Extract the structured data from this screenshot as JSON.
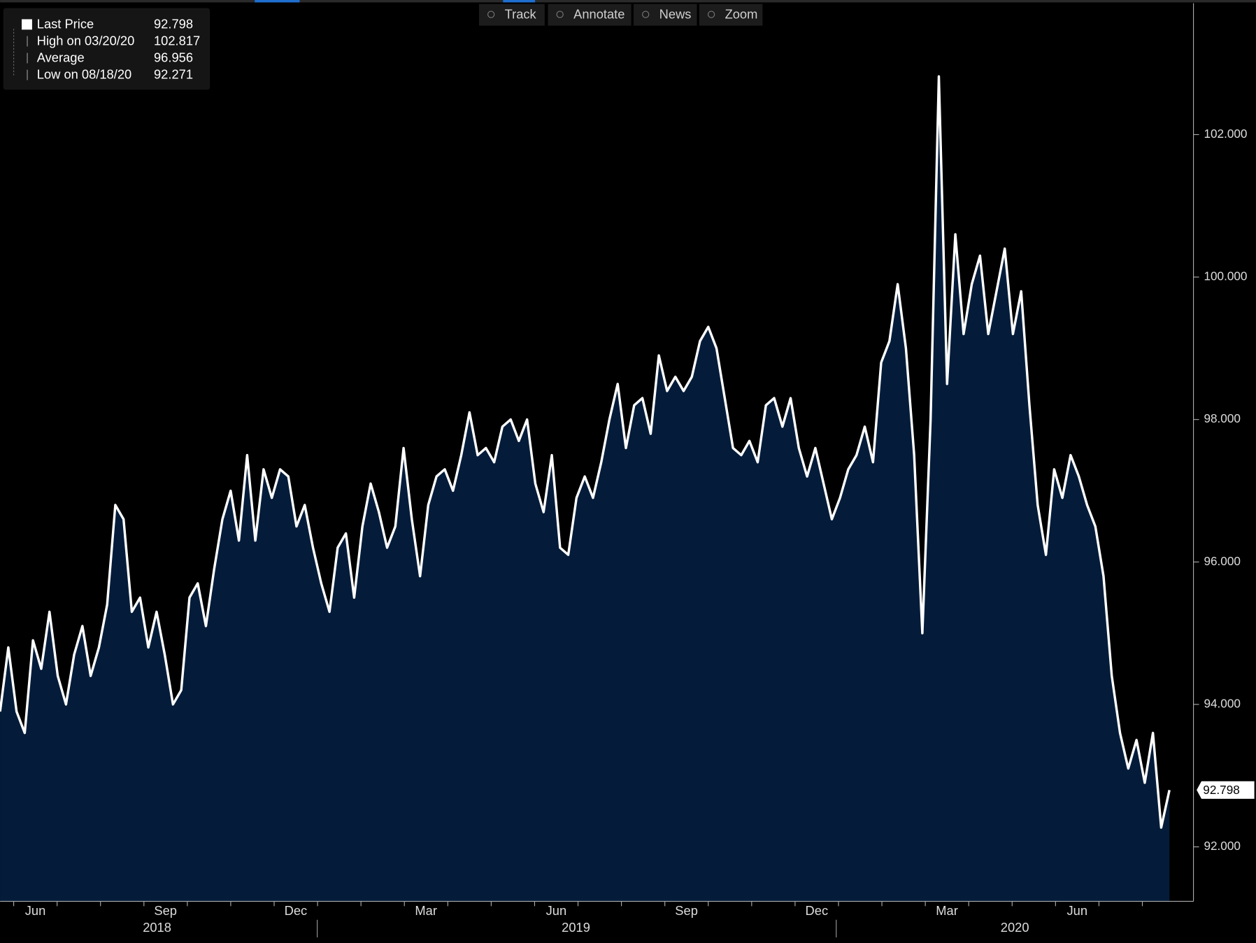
{
  "toolbar": [
    "Track",
    "Annotate",
    "News",
    "Zoom"
  ],
  "chart_data": {
    "type": "area-line",
    "series": [
      {
        "name": "Last Price",
        "color": "#ffffff",
        "fill": "#041c3a",
        "values": [
          93.9,
          94.8,
          93.9,
          93.6,
          94.9,
          94.5,
          95.3,
          94.4,
          94.0,
          94.7,
          95.1,
          94.4,
          94.8,
          95.4,
          96.8,
          96.6,
          95.3,
          95.5,
          94.8,
          95.3,
          94.7,
          94.0,
          94.2,
          95.5,
          95.7,
          95.1,
          95.9,
          96.6,
          97.0,
          96.3,
          97.5,
          96.3,
          97.3,
          96.9,
          97.3,
          97.2,
          96.5,
          96.8,
          96.2,
          95.7,
          95.3,
          96.2,
          96.4,
          95.5,
          96.5,
          97.1,
          96.7,
          96.2,
          96.5,
          97.6,
          96.6,
          95.8,
          96.8,
          97.2,
          97.3,
          97.0,
          97.5,
          98.1,
          97.5,
          97.6,
          97.4,
          97.9,
          98.0,
          97.7,
          98.0,
          97.1,
          96.7,
          97.5,
          96.2,
          96.1,
          96.9,
          97.2,
          96.9,
          97.4,
          98.0,
          98.5,
          97.6,
          98.2,
          98.3,
          97.8,
          98.9,
          98.4,
          98.6,
          98.4,
          98.6,
          99.1,
          99.3,
          99.0,
          98.3,
          97.6,
          97.5,
          97.7,
          97.4,
          98.2,
          98.3,
          97.9,
          98.3,
          97.6,
          97.2,
          97.6,
          97.1,
          96.6,
          96.9,
          97.3,
          97.5,
          97.9,
          97.4,
          98.8,
          99.1,
          99.9,
          99.0,
          97.5,
          95.0,
          98.0,
          102.817,
          98.5,
          100.6,
          99.2,
          99.9,
          100.3,
          99.2,
          99.8,
          100.4,
          99.2,
          99.8,
          98.2,
          96.8,
          96.1,
          97.3,
          96.9,
          97.5,
          97.2,
          96.8,
          96.5,
          95.8,
          94.4,
          93.6,
          93.1,
          93.5,
          92.9,
          93.6,
          92.271,
          92.798
        ]
      }
    ],
    "legend_stats": [
      {
        "label": "Last Price",
        "value": 92.798
      },
      {
        "label": "High on 03/20/20",
        "value": 102.817
      },
      {
        "label": "Average",
        "value": 96.956
      },
      {
        "label": "Low on 08/18/20",
        "value": 92.271
      }
    ],
    "x_labels": [
      "Jun",
      "Sep",
      "Dec",
      "Mar",
      "Jun",
      "Sep",
      "Dec",
      "Mar",
      "Jun"
    ],
    "year_labels": [
      "2018",
      "2019",
      "2020"
    ],
    "ylim": [
      91.235,
      103.89
    ],
    "yticks": [
      {
        "value": 92,
        "label": "92.000"
      },
      {
        "value": 94,
        "label": "94.000"
      },
      {
        "value": 96,
        "label": "96.000"
      },
      {
        "value": 98,
        "label": "98.000"
      },
      {
        "value": 100,
        "label": "100.000"
      },
      {
        "value": 102,
        "label": "102.000"
      }
    ]
  }
}
